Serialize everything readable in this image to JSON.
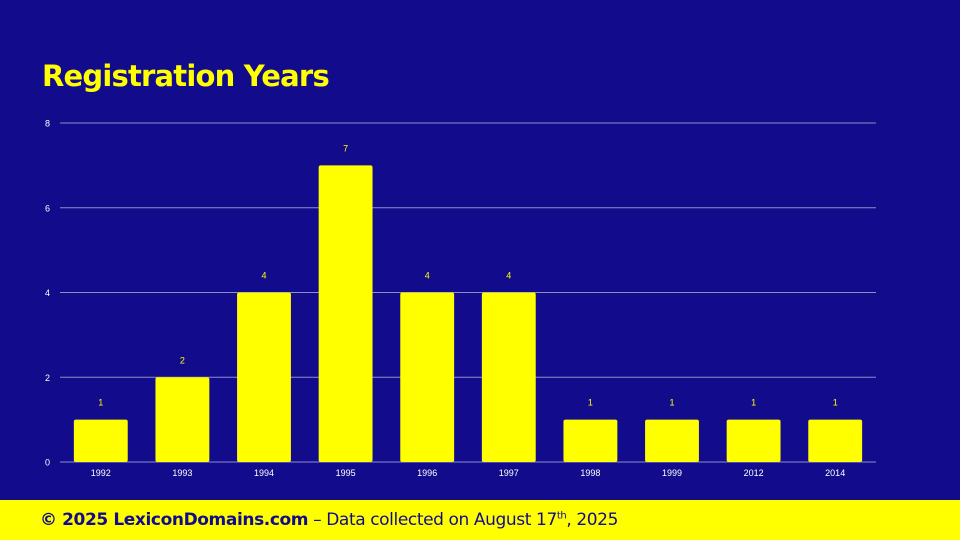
{
  "theme": {
    "background": "#120c8c",
    "accent": "#ffff00",
    "gridline": "#8f8dc6",
    "axis_text": "#ffffff"
  },
  "chart_data": {
    "type": "bar",
    "title": "Registration Years",
    "xlabel": "",
    "ylabel": "",
    "categories": [
      "1992",
      "1993",
      "1994",
      "1995",
      "1996",
      "1997",
      "1998",
      "1999",
      "2012",
      "2014"
    ],
    "values": [
      1,
      2,
      4,
      7,
      4,
      4,
      1,
      1,
      1,
      1
    ],
    "ylim": [
      0,
      8
    ],
    "yticks": [
      "0",
      "2",
      "4",
      "6",
      "8"
    ],
    "grid": true,
    "data_labels": true,
    "legend": "none"
  },
  "footer": {
    "copyright": "© 2025 LexiconDomains.com",
    "separator": " – ",
    "collected_prefix": "Data collected on August 17",
    "ordinal_suffix": "th",
    "collected_year": ", 2025"
  }
}
